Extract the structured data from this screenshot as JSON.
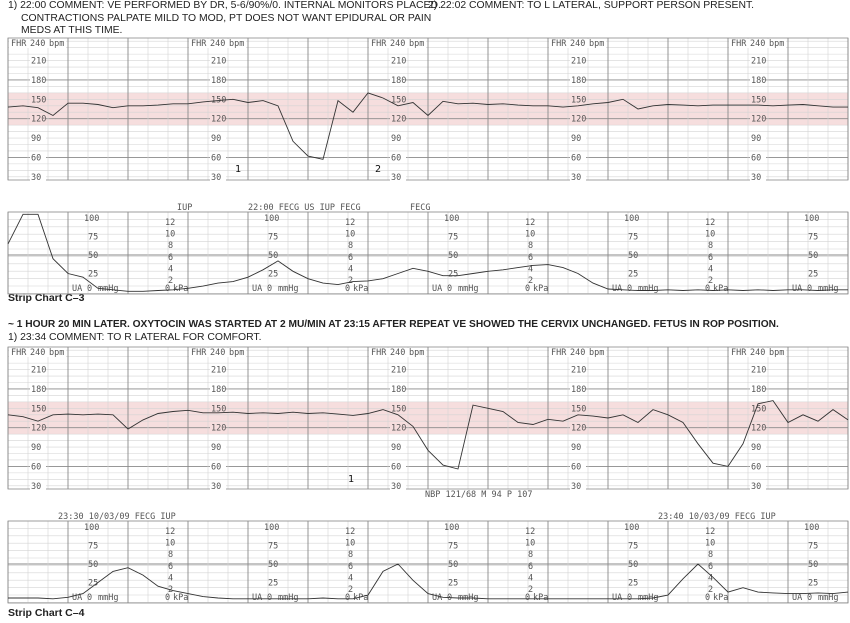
{
  "strip_c3": {
    "comment_1": "1) 22:00 COMMENT: VE PERFORMED BY DR, 5-6/90%/0. INTERNAL MONITORS PLACED. CONTRACTIONS PALPATE MILD TO MOD, PT DOES NOT WANT EPIDURAL OR PAIN MEDS AT THIS TIME.",
    "comment_2": "2) 22:02 COMMENT: TO L LATERAL, SUPPORT PERSON PRESENT.",
    "caption": "Strip Chart C–3",
    "ua_headers": [
      "IUP",
      "22:00  FECG  US   IUP   FECG",
      "FECG"
    ],
    "markers": [
      "1",
      "2"
    ]
  },
  "strip_c4": {
    "intro": "~ 1 HOUR 20 MIN LATER. OXYTOCIN WAS STARTED AT 2 MU/MIN AT 23:15 AFTER REPEAT VE SHOWED THE CERVIX UNCHANGED. FETUS IN ROP POSITION.",
    "comment_1": "1) 23:34 COMMENT: TO R LATERAL FOR COMFORT.",
    "caption": "Strip Chart C–4",
    "ua_headers": [
      "23:30 10/03/09 FECG IUP",
      "23:40 10/03/09 FECG IUP"
    ],
    "nbp": "NBP 121/68 M 94 P 107",
    "markers": [
      "1"
    ]
  },
  "scales": {
    "fhr_label": "FHR",
    "fhr_unit": "bpm",
    "fhr_ticks": [
      "240",
      "210",
      "180",
      "150",
      "120",
      "90",
      "60",
      "30"
    ],
    "ua_label": "UA",
    "ua_unit": "mmHg",
    "ua_ticks": [
      "100",
      "75",
      "50",
      "25",
      "0"
    ],
    "kpa_unit": "kPa",
    "kpa_ticks": [
      "12",
      "10",
      "8",
      "6",
      "4",
      "2",
      "0"
    ]
  },
  "colors": {
    "trace": "#333333",
    "grid_minor": "#d4d4d4",
    "grid_major": "#8a8a8a",
    "normal_band": "#f6dede"
  },
  "chart_data": [
    {
      "type": "line",
      "strip": "C-3",
      "panel": "FHR",
      "ylabel": "FHR",
      "unit": "bpm",
      "ylim": [
        30,
        240
      ],
      "normal_band": [
        110,
        160
      ],
      "grid": true,
      "values": [
        138,
        140,
        137,
        125,
        144,
        144,
        142,
        137,
        140,
        140,
        141,
        143,
        143,
        146,
        148,
        150,
        145,
        148,
        140,
        85,
        62,
        57,
        148,
        130,
        160,
        152,
        140,
        145,
        125,
        147,
        143,
        144,
        142,
        143,
        141,
        140,
        140,
        138,
        140,
        143,
        145,
        150,
        135,
        140,
        142,
        141,
        140,
        141,
        141,
        141,
        141,
        140,
        141,
        142,
        140,
        138,
        138
      ]
    },
    {
      "type": "line",
      "strip": "C-3",
      "panel": "UA",
      "ylabel": "UA",
      "unit": "mmHg",
      "ylim": [
        0,
        100
      ],
      "secondary_unit": "kPa",
      "grid": true,
      "values": [
        65,
        105,
        105,
        45,
        25,
        20,
        5,
        3,
        1,
        1,
        2,
        3,
        5,
        8,
        12,
        14,
        20,
        30,
        42,
        28,
        18,
        12,
        10,
        14,
        15,
        18,
        25,
        32,
        28,
        22,
        22,
        25,
        28,
        30,
        33,
        36,
        37,
        33,
        25,
        12,
        4,
        3,
        2,
        2,
        3,
        2,
        3,
        2,
        3,
        2,
        3,
        2,
        3,
        3,
        2,
        3,
        3
      ]
    },
    {
      "type": "line",
      "strip": "C-4",
      "panel": "FHR",
      "ylabel": "FHR",
      "unit": "bpm",
      "ylim": [
        30,
        240
      ],
      "normal_band": [
        110,
        160
      ],
      "grid": true,
      "values": [
        140,
        137,
        130,
        140,
        141,
        140,
        141,
        140,
        118,
        132,
        142,
        145,
        147,
        143,
        143,
        144,
        142,
        143,
        142,
        144,
        142,
        143,
        141,
        139,
        142,
        148,
        140,
        122,
        85,
        62,
        56,
        155,
        150,
        145,
        128,
        125,
        133,
        130,
        140,
        138,
        135,
        140,
        128,
        148,
        140,
        128,
        95,
        65,
        60,
        95,
        157,
        162,
        128,
        140,
        130,
        148,
        132
      ]
    },
    {
      "type": "line",
      "strip": "C-4",
      "panel": "UA",
      "ylabel": "UA",
      "unit": "mmHg",
      "ylim": [
        0,
        100
      ],
      "secondary_unit": "kPa",
      "grid": true,
      "values": [
        4,
        4,
        4,
        3,
        5,
        10,
        25,
        40,
        45,
        35,
        20,
        14,
        10,
        6,
        4,
        3,
        3,
        3,
        3,
        3,
        3,
        4,
        3,
        3,
        8,
        40,
        50,
        28,
        10,
        5,
        4,
        4,
        3,
        3,
        3,
        3,
        3,
        3,
        3,
        3,
        3,
        3,
        3,
        4,
        8,
        30,
        50,
        32,
        12,
        18,
        12,
        11,
        10,
        10,
        11,
        10,
        12
      ]
    }
  ]
}
